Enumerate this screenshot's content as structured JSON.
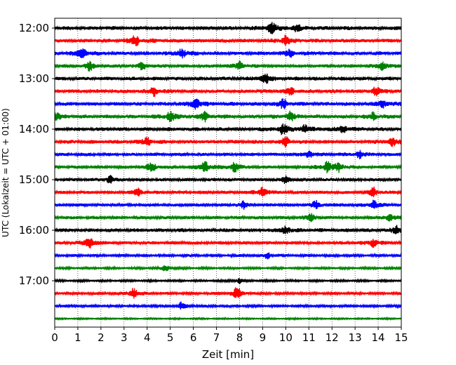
{
  "chart_data": {
    "type": "line",
    "xlabel": "Zeit  [min]",
    "ylabel": "UTC (Lokalzeit = UTC + 01:00)",
    "xlim": [
      0,
      15
    ],
    "x_ticks": [
      "0",
      "1",
      "2",
      "3",
      "4",
      "5",
      "6",
      "7",
      "8",
      "9",
      "10",
      "11",
      "12",
      "13",
      "14",
      "15"
    ],
    "y_tick_labels": [
      "12:00",
      "13:00",
      "14:00",
      "15:00",
      "16:00",
      "17:00"
    ],
    "y_tick_traces": [
      0,
      4,
      8,
      12,
      16,
      20
    ],
    "grid_x": true,
    "grid_style": "dotted",
    "colors": [
      "#000000",
      "#ff0000",
      "#0000ff",
      "#008000"
    ],
    "traces": [
      {
        "start": "12:00",
        "amp": 0.35,
        "events": [
          {
            "t": 9.4,
            "a": 1.0
          },
          {
            "t": 10.5,
            "a": 0.5
          }
        ]
      },
      {
        "start": "12:15",
        "amp": 0.35,
        "events": [
          {
            "t": 3.5,
            "a": 0.8
          },
          {
            "t": 10.0,
            "a": 0.7
          }
        ]
      },
      {
        "start": "12:30",
        "amp": 0.35,
        "events": [
          {
            "t": 1.2,
            "a": 0.8
          },
          {
            "t": 5.5,
            "a": 0.7
          },
          {
            "t": 10.2,
            "a": 0.5
          }
        ]
      },
      {
        "start": "12:45",
        "amp": 0.3,
        "events": [
          {
            "t": 1.5,
            "a": 0.6
          },
          {
            "t": 3.8,
            "a": 0.5
          },
          {
            "t": 8.0,
            "a": 0.6
          },
          {
            "t": 14.2,
            "a": 0.6
          }
        ]
      },
      {
        "start": "13:00",
        "amp": 0.35,
        "events": [
          {
            "t": 9.1,
            "a": 0.8
          }
        ]
      },
      {
        "start": "13:15",
        "amp": 0.35,
        "events": [
          {
            "t": 4.3,
            "a": 0.6
          },
          {
            "t": 10.2,
            "a": 0.5
          },
          {
            "t": 13.9,
            "a": 0.6
          }
        ]
      },
      {
        "start": "13:30",
        "amp": 0.35,
        "events": [
          {
            "t": 6.1,
            "a": 0.9
          },
          {
            "t": 9.9,
            "a": 0.6
          },
          {
            "t": 14.2,
            "a": 0.5
          }
        ]
      },
      {
        "start": "13:45",
        "amp": 0.35,
        "events": [
          {
            "t": 0.1,
            "a": 0.5
          },
          {
            "t": 5.0,
            "a": 0.8
          },
          {
            "t": 6.5,
            "a": 0.6
          },
          {
            "t": 10.2,
            "a": 0.6
          },
          {
            "t": 13.8,
            "a": 0.5
          }
        ]
      },
      {
        "start": "14:00",
        "amp": 0.35,
        "events": [
          {
            "t": 9.9,
            "a": 0.9
          },
          {
            "t": 10.8,
            "a": 0.5
          },
          {
            "t": 12.5,
            "a": 0.5
          }
        ]
      },
      {
        "start": "14:15",
        "amp": 0.35,
        "events": [
          {
            "t": 4.0,
            "a": 0.6
          },
          {
            "t": 10.0,
            "a": 0.6
          },
          {
            "t": 14.6,
            "a": 0.7
          }
        ]
      },
      {
        "start": "14:30",
        "amp": 0.3,
        "events": [
          {
            "t": 11.0,
            "a": 0.5
          },
          {
            "t": 13.2,
            "a": 0.5
          }
        ]
      },
      {
        "start": "14:45",
        "amp": 0.3,
        "events": [
          {
            "t": 4.2,
            "a": 0.7
          },
          {
            "t": 6.5,
            "a": 0.8
          },
          {
            "t": 7.8,
            "a": 0.7
          },
          {
            "t": 11.8,
            "a": 0.7
          },
          {
            "t": 12.3,
            "a": 0.6
          }
        ]
      },
      {
        "start": "15:00",
        "amp": 0.3,
        "events": [
          {
            "t": 2.4,
            "a": 0.5
          },
          {
            "t": 10.0,
            "a": 0.5
          }
        ]
      },
      {
        "start": "15:15",
        "amp": 0.3,
        "events": [
          {
            "t": 3.6,
            "a": 0.5
          },
          {
            "t": 9.0,
            "a": 0.7
          },
          {
            "t": 13.8,
            "a": 0.6
          }
        ]
      },
      {
        "start": "15:30",
        "amp": 0.3,
        "events": [
          {
            "t": 8.2,
            "a": 0.5
          },
          {
            "t": 11.3,
            "a": 0.5
          },
          {
            "t": 13.8,
            "a": 0.6
          }
        ]
      },
      {
        "start": "15:45",
        "amp": 0.3,
        "events": [
          {
            "t": 11.1,
            "a": 0.5
          },
          {
            "t": 14.5,
            "a": 0.6
          }
        ]
      },
      {
        "start": "16:00",
        "amp": 0.35,
        "events": [
          {
            "t": 10.0,
            "a": 0.6
          },
          {
            "t": 14.8,
            "a": 0.5
          }
        ]
      },
      {
        "start": "16:15",
        "amp": 0.3,
        "events": [
          {
            "t": 1.5,
            "a": 0.9
          },
          {
            "t": 13.8,
            "a": 0.6
          }
        ]
      },
      {
        "start": "16:30",
        "amp": 0.25,
        "events": [
          {
            "t": 9.2,
            "a": 0.4
          }
        ]
      },
      {
        "start": "16:45",
        "amp": 0.2,
        "events": [
          {
            "t": 4.8,
            "a": 0.4
          }
        ]
      },
      {
        "start": "17:00",
        "amp": 0.2,
        "events": [
          {
            "t": 8.0,
            "a": 0.3
          }
        ]
      },
      {
        "start": "17:15",
        "amp": 0.25,
        "events": [
          {
            "t": 3.4,
            "a": 0.8
          },
          {
            "t": 7.9,
            "a": 1.0
          }
        ]
      },
      {
        "start": "17:30",
        "amp": 0.25,
        "events": [
          {
            "t": 5.5,
            "a": 0.5
          }
        ]
      },
      {
        "start": "17:45",
        "amp": 0.15,
        "events": []
      }
    ]
  }
}
